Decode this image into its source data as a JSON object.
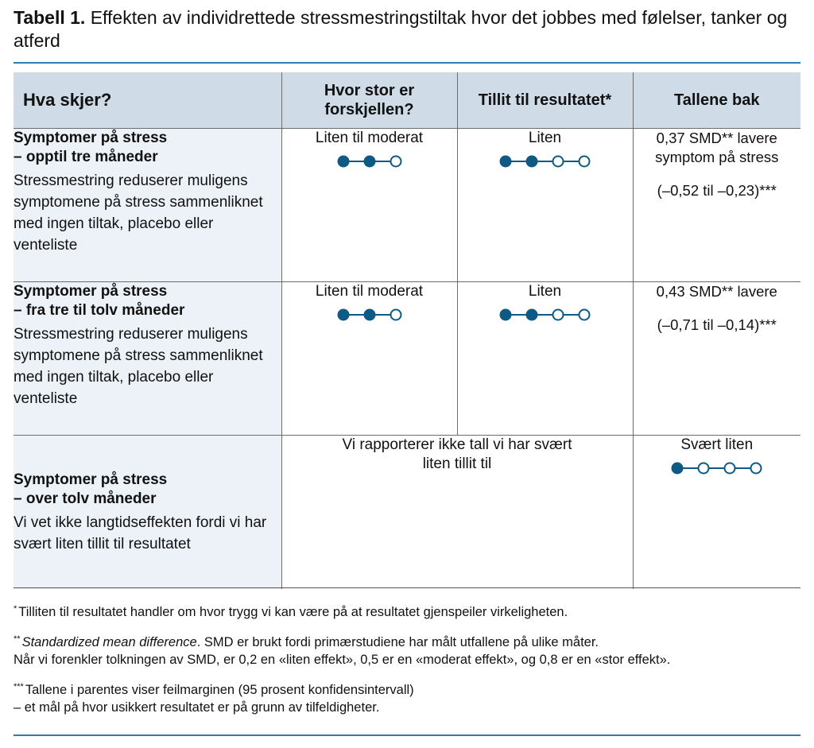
{
  "caption": {
    "label": "Tabell 1.",
    "text": "Effekten av individrettede stressmestringstiltak hvor det jobbes med følelser, tanker og atferd"
  },
  "table": {
    "headers": [
      "Hva skjer?",
      "Hvor stor er forskjellen?",
      "Tillit til resultatet*",
      "Tallene bak"
    ],
    "rows": [
      {
        "title_line1": "Symptomer på stress",
        "title_line2": "– opptil tre måneder",
        "description": "Stressmestring reduserer muligens symptomene på stress sammenliknet med ingen tiltak, placebo eller venteliste",
        "size": {
          "label": "Liten til moderat",
          "filled": 2,
          "total": 3
        },
        "certainty": {
          "label": "Liten",
          "filled": 2,
          "total": 4
        },
        "numbers": {
          "main": "0,37 SMD** lavere symptom på stress",
          "ci": "(–0,52 til –0,23)***"
        }
      },
      {
        "title_line1": "Symptomer på stress",
        "title_line2": "– fra tre til tolv måneder",
        "description": "Stressmestring reduserer muligens symptomene på stress sammenliknet med ingen tiltak, placebo eller venteliste",
        "size": {
          "label": "Liten til moderat",
          "filled": 2,
          "total": 3
        },
        "certainty": {
          "label": "Liten",
          "filled": 2,
          "total": 4
        },
        "numbers": {
          "main": "0,43 SMD** lavere",
          "ci": "(–0,71 til –0,14)***"
        }
      },
      {
        "title_line1": "Symptomer på stress",
        "title_line2": "– over tolv måneder",
        "description": "Vi vet ikke langtidseffekten fordi vi har svært liten tillit til resultatet",
        "merged_text": "Vi rapporterer ikke tall vi har svært liten tillit til",
        "certainty": {
          "label": "Svært liten",
          "filled": 1,
          "total": 4
        }
      }
    ]
  },
  "footnotes": {
    "fn1": {
      "marker": "*",
      "text": "Tilliten til resultatet handler om hvor trygg vi kan være på at resultatet gjenspeiler virkeligheten."
    },
    "fn2": {
      "marker": "**",
      "term": "Standardized mean difference",
      "text": ". SMD er brukt fordi primærstudiene har målt utfallene på ulike måter.",
      "line2": "Når vi forenkler tolkningen av SMD, er 0,2 en «liten effekt», 0,5 er en «moderat effekt», og 0,8 er en «stor effekt»."
    },
    "fn3": {
      "marker": "***",
      "text": "Tallene i parentes viser feilmarginen (95 prosent konfidensintervall)",
      "line2": "– et mål på hvor usikkert resultatet er på grunn av tilfeldigheter."
    }
  },
  "colors": {
    "dot": "#0e5a84",
    "rule": "#2f7ab1",
    "header_bg": "#cfdce8",
    "rowhead_bg": "#edf2f8"
  }
}
